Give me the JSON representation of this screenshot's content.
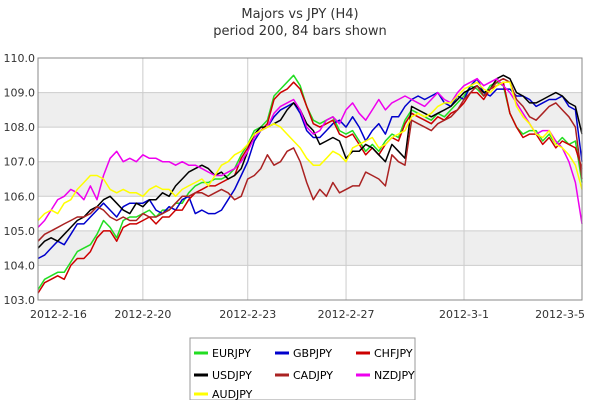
{
  "chart_data": {
    "type": "line",
    "title": "Majors vs JPY (H4)",
    "subtitle": "period 200, 84 bars shown",
    "xlabel": "",
    "ylabel": "",
    "ylim": [
      103.0,
      110.0
    ],
    "yticks": [
      "103.0",
      "104.0",
      "105.0",
      "106.0",
      "107.0",
      "108.0",
      "109.0",
      "110.0"
    ],
    "xticks": [
      {
        "label": "2012-2-16",
        "bar": 0
      },
      {
        "label": "2012-2-20",
        "bar": 16
      },
      {
        "label": "2012-2-23",
        "bar": 32
      },
      {
        "label": "2012-2-27",
        "bar": 47
      },
      {
        "label": "2012-3-1",
        "bar": 65
      },
      {
        "label": "2012-3-5",
        "bar": 83
      }
    ],
    "bar_count": 84,
    "grid": true,
    "alternating_bands": true,
    "legend_position": "bottom",
    "series": [
      {
        "name": "EURJPY",
        "color": "#22dd22",
        "values": [
          103.3,
          103.6,
          103.7,
          103.8,
          103.8,
          104.1,
          104.4,
          104.5,
          104.6,
          104.9,
          105.3,
          105.1,
          104.8,
          105.3,
          105.4,
          105.4,
          105.5,
          105.6,
          105.4,
          105.6,
          105.6,
          105.8,
          105.8,
          106.1,
          106.3,
          106.4,
          106.4,
          106.5,
          106.5,
          106.6,
          106.8,
          107.2,
          107.5,
          107.9,
          108.0,
          108.2,
          108.9,
          109.1,
          109.3,
          109.5,
          109.2,
          108.6,
          108.2,
          108.1,
          108.2,
          108.3,
          107.9,
          107.8,
          107.9,
          107.6,
          107.3,
          107.5,
          107.3,
          107.6,
          107.8,
          107.7,
          108.2,
          108.5,
          108.4,
          108.3,
          108.2,
          108.4,
          108.3,
          108.5,
          108.7,
          108.9,
          109.2,
          109.1,
          108.9,
          109.2,
          109.3,
          109.2,
          108.4,
          108.0,
          107.8,
          107.9,
          107.9,
          107.6,
          107.8,
          107.5,
          107.7,
          107.5,
          107.6,
          106.4
        ]
      },
      {
        "name": "GBPJPY",
        "color": "#0000cc",
        "values": [
          104.2,
          104.3,
          104.5,
          104.7,
          104.6,
          104.9,
          105.2,
          105.2,
          105.4,
          105.6,
          105.8,
          105.6,
          105.4,
          105.7,
          105.8,
          105.8,
          105.8,
          105.9,
          105.6,
          105.5,
          105.7,
          105.6,
          105.9,
          106.0,
          105.5,
          105.6,
          105.5,
          105.5,
          105.6,
          105.9,
          106.2,
          106.6,
          107.0,
          107.6,
          107.9,
          108.0,
          108.3,
          108.5,
          108.6,
          108.7,
          108.4,
          107.9,
          107.7,
          107.7,
          107.9,
          108.1,
          108.2,
          108.0,
          108.3,
          108.0,
          107.6,
          107.9,
          108.1,
          107.8,
          108.3,
          108.3,
          108.6,
          108.8,
          108.9,
          108.8,
          108.9,
          109.0,
          108.7,
          108.6,
          108.9,
          108.8,
          109.2,
          109.4,
          109.0,
          108.9,
          109.1,
          109.1,
          109.1,
          108.9,
          108.9,
          108.8,
          108.6,
          108.7,
          108.8,
          108.8,
          108.9,
          108.6,
          108.5,
          107.0
        ]
      },
      {
        "name": "CHFJPY",
        "color": "#cc0000",
        "values": [
          103.2,
          103.5,
          103.6,
          103.7,
          103.6,
          104.0,
          104.2,
          104.2,
          104.4,
          104.8,
          105.0,
          105.0,
          104.7,
          105.1,
          105.2,
          105.2,
          105.3,
          105.4,
          105.2,
          105.4,
          105.4,
          105.6,
          105.6,
          105.9,
          106.1,
          106.2,
          106.3,
          106.3,
          106.4,
          106.5,
          106.6,
          107.1,
          107.4,
          107.8,
          107.9,
          108.1,
          108.8,
          109.0,
          109.1,
          109.3,
          109.1,
          108.6,
          108.1,
          108.0,
          108.1,
          108.2,
          107.8,
          107.7,
          107.8,
          107.5,
          107.2,
          107.4,
          107.2,
          107.5,
          107.7,
          107.6,
          108.1,
          108.4,
          108.3,
          108.2,
          108.1,
          108.3,
          108.2,
          108.4,
          108.5,
          108.7,
          109.0,
          109.0,
          108.8,
          109.1,
          109.2,
          109.3,
          108.4,
          108.0,
          107.7,
          107.8,
          107.8,
          107.5,
          107.7,
          107.4,
          107.6,
          107.5,
          107.4,
          106.8
        ]
      },
      {
        "name": "USDJPY",
        "color": "#000000",
        "values": [
          104.5,
          104.7,
          104.8,
          104.7,
          104.9,
          105.1,
          105.3,
          105.4,
          105.6,
          105.7,
          105.9,
          106.0,
          105.8,
          105.6,
          105.5,
          105.8,
          105.7,
          105.9,
          105.9,
          106.1,
          106.0,
          106.3,
          106.5,
          106.7,
          106.8,
          106.9,
          106.8,
          106.6,
          106.7,
          106.5,
          106.6,
          106.8,
          107.3,
          107.8,
          108.0,
          108.0,
          108.1,
          108.2,
          108.5,
          108.7,
          108.5,
          108.1,
          107.9,
          107.5,
          107.6,
          107.7,
          107.6,
          107.1,
          107.3,
          107.3,
          107.5,
          107.4,
          107.2,
          107.0,
          107.5,
          107.3,
          107.1,
          108.6,
          108.5,
          108.4,
          108.3,
          108.4,
          108.5,
          108.6,
          108.8,
          109.0,
          109.1,
          109.2,
          109.0,
          109.1,
          109.4,
          109.5,
          109.4,
          109.0,
          108.9,
          108.7,
          108.7,
          108.8,
          108.9,
          109.0,
          108.9,
          108.7,
          108.6,
          107.8
        ]
      },
      {
        "name": "CADJPY",
        "color": "#aa2222",
        "values": [
          104.7,
          104.9,
          105.0,
          105.1,
          105.2,
          105.3,
          105.4,
          105.4,
          105.5,
          105.7,
          105.6,
          105.4,
          105.3,
          105.4,
          105.3,
          105.3,
          105.5,
          105.4,
          105.4,
          105.5,
          105.6,
          105.8,
          106.0,
          106.0,
          106.1,
          106.1,
          106.0,
          106.1,
          106.2,
          106.1,
          105.9,
          106.0,
          106.5,
          106.6,
          106.8,
          107.2,
          106.9,
          107.0,
          107.3,
          107.4,
          107.0,
          106.4,
          105.9,
          106.2,
          106.0,
          106.4,
          106.1,
          106.2,
          106.3,
          106.3,
          106.7,
          106.6,
          106.5,
          106.3,
          107.2,
          107.0,
          106.9,
          108.2,
          108.1,
          108.0,
          107.9,
          108.1,
          108.2,
          108.3,
          108.5,
          108.8,
          109.0,
          109.2,
          108.9,
          109.1,
          109.3,
          109.4,
          109.3,
          108.8,
          108.6,
          108.3,
          108.2,
          108.4,
          108.6,
          108.7,
          108.5,
          108.3,
          108.0,
          106.5
        ]
      },
      {
        "name": "NZDJPY",
        "color": "#ee00ee",
        "values": [
          105.1,
          105.3,
          105.6,
          105.9,
          106.0,
          106.2,
          106.1,
          105.9,
          106.3,
          105.9,
          106.6,
          107.1,
          107.3,
          107.0,
          107.1,
          107.0,
          107.2,
          107.1,
          107.1,
          107.0,
          107.0,
          106.9,
          107.0,
          106.9,
          106.9,
          106.8,
          106.7,
          106.6,
          106.6,
          106.7,
          106.8,
          107.0,
          107.3,
          107.7,
          107.9,
          108.0,
          108.4,
          108.6,
          108.7,
          108.8,
          108.5,
          108.0,
          107.8,
          107.9,
          108.2,
          108.3,
          108.1,
          108.5,
          108.7,
          108.4,
          108.2,
          108.5,
          108.8,
          108.5,
          108.7,
          108.8,
          108.9,
          108.8,
          108.7,
          108.6,
          108.8,
          109.0,
          108.8,
          108.7,
          109.0,
          109.2,
          109.3,
          109.4,
          109.2,
          109.3,
          109.4,
          109.2,
          109.0,
          108.7,
          108.4,
          108.1,
          107.8,
          107.9,
          107.9,
          107.6,
          107.4,
          107.0,
          106.4,
          105.2
        ]
      },
      {
        "name": "AUDJPY",
        "color": "#ffff00",
        "values": [
          105.3,
          105.5,
          105.6,
          105.5,
          105.8,
          105.9,
          106.2,
          106.4,
          106.6,
          106.6,
          106.5,
          106.2,
          106.1,
          106.2,
          106.1,
          106.1,
          106.0,
          106.2,
          106.3,
          106.2,
          106.2,
          106.0,
          106.2,
          106.3,
          106.4,
          106.5,
          106.3,
          106.6,
          106.9,
          107.0,
          107.2,
          107.3,
          107.5,
          107.8,
          107.9,
          108.0,
          108.1,
          108.0,
          107.8,
          107.6,
          107.4,
          107.1,
          106.9,
          106.9,
          107.1,
          107.3,
          107.2,
          107.0,
          107.4,
          107.5,
          107.6,
          107.7,
          107.4,
          107.5,
          107.7,
          107.8,
          107.9,
          108.3,
          108.4,
          108.3,
          108.4,
          108.6,
          108.7,
          108.7,
          108.9,
          109.1,
          109.2,
          109.3,
          109.1,
          109.0,
          109.2,
          109.3,
          109.3,
          108.6,
          108.3,
          108.1,
          107.8,
          107.7,
          107.9,
          107.5,
          107.4,
          107.2,
          106.9,
          106.2
        ]
      }
    ]
  }
}
